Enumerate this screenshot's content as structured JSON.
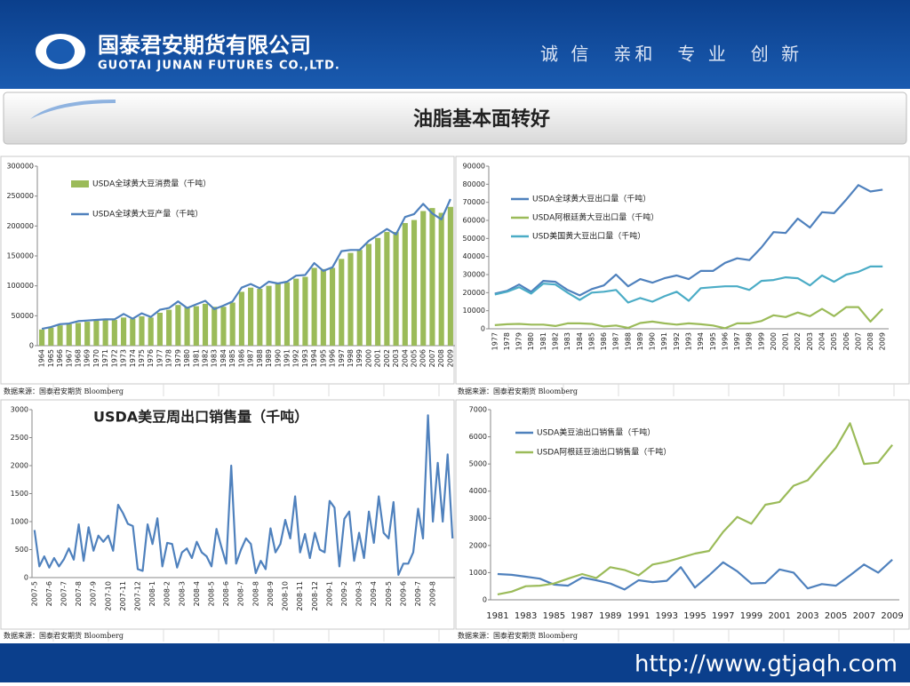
{
  "header": {
    "company": "国泰君安期货有限公司",
    "company_en": "GUOTAI JUNAN FUTURES CO.,LTD.",
    "slogan": "诚 信　亲和　专 业　创 新"
  },
  "title": "油脂基本面转好",
  "sources": [
    "数据来源：国泰君安期货 Bloomberg",
    "数据来源：国泰君安期货 Bloomberg",
    "数据来源：国泰君安期货 Bloomberg",
    "数据来源：国泰君安期货 Bloomberg"
  ],
  "footer": "http://www.gtjaqh.com",
  "chart_data": [
    {
      "type": "bar",
      "legend": "upper left",
      "categories": [
        "1964",
        "1965",
        "1966",
        "1967",
        "1968",
        "1969",
        "1970",
        "1971",
        "1972",
        "1973",
        "1974",
        "1975",
        "1976",
        "1977",
        "1978",
        "1979",
        "1980",
        "1981",
        "1982",
        "1983",
        "1984",
        "1985",
        "1986",
        "1987",
        "1988",
        "1989",
        "1990",
        "1991",
        "1992",
        "1993",
        "1994",
        "1995",
        "1996",
        "1997",
        "1998",
        "1999",
        "2000",
        "2001",
        "2002",
        "2003",
        "2004",
        "2005",
        "2006",
        "2007",
        "2008",
        "2009"
      ],
      "series": [
        {
          "name": "USDA全球黄大豆消费量（千吨）",
          "type": "bar",
          "color": "#9bbb59",
          "values": [
            27000,
            30000,
            34000,
            36000,
            38000,
            40000,
            42000,
            43000,
            43000,
            47000,
            45000,
            49000,
            47000,
            55000,
            60000,
            68000,
            65000,
            66000,
            70000,
            65000,
            65000,
            72000,
            90000,
            97000,
            95000,
            100000,
            104000,
            106000,
            112000,
            115000,
            130000,
            128000,
            130000,
            145000,
            155000,
            160000,
            170000,
            180000,
            190000,
            190000,
            205000,
            210000,
            225000,
            230000,
            222000,
            232000
          ]
        },
        {
          "name": "USDA全球黄大豆产量（千吨）",
          "type": "line",
          "color": "#4f81bd",
          "values": [
            28000,
            31000,
            36000,
            37000,
            41000,
            42000,
            43000,
            44000,
            44000,
            53000,
            45000,
            54000,
            48000,
            60000,
            63000,
            74000,
            63000,
            69000,
            75000,
            61000,
            67000,
            74000,
            97000,
            103000,
            96000,
            107000,
            104000,
            107000,
            117000,
            118000,
            138000,
            125000,
            131000,
            158000,
            160000,
            160000,
            175000,
            185000,
            195000,
            186000,
            215000,
            220000,
            237000,
            221000,
            211000,
            245000
          ]
        }
      ],
      "ylim": [
        0,
        300000
      ],
      "yticks": [
        0,
        50000,
        100000,
        150000,
        200000,
        250000,
        300000
      ]
    },
    {
      "type": "line",
      "legend": "upper left",
      "categories": [
        "1977",
        "1978",
        "1979",
        "1980",
        "1981",
        "1982",
        "1983",
        "1984",
        "1985",
        "1986",
        "1987",
        "1988",
        "1989",
        "1990",
        "1991",
        "1992",
        "1993",
        "1994",
        "1995",
        "1996",
        "1997",
        "1998",
        "1999",
        "2000",
        "2001",
        "2002",
        "2003",
        "2004",
        "2005",
        "2006",
        "2007",
        "2008",
        "2009"
      ],
      "series": [
        {
          "name": "USDA全球黄大豆出口量（千吨）",
          "color": "#4f81bd",
          "values": [
            19500,
            21000,
            24500,
            20500,
            26500,
            26000,
            21500,
            18500,
            22000,
            24000,
            30000,
            23500,
            27500,
            25500,
            28000,
            29500,
            27500,
            32000,
            32000,
            36500,
            39000,
            38000,
            45000,
            53500,
            53000,
            61000,
            56000,
            64500,
            64000,
            71500,
            79500,
            76000,
            77000
          ]
        },
        {
          "name": "USDA阿根廷黄大豆出口量（千吨）",
          "color": "#9bbb59",
          "values": [
            2000,
            2500,
            2700,
            2300,
            2300,
            1500,
            3000,
            3000,
            2700,
            1300,
            1800,
            500,
            3200,
            4000,
            3000,
            2300,
            3000,
            2500,
            1800,
            300,
            3000,
            3000,
            4300,
            7500,
            6500,
            9000,
            7000,
            11000,
            7000,
            12000,
            12000,
            4000,
            11000
          ]
        },
        {
          "name": "USD美国黄大豆出口量（千吨）",
          "color": "#4bacc6",
          "values": [
            19000,
            20500,
            23000,
            19500,
            25000,
            24500,
            20000,
            16000,
            20000,
            20500,
            21500,
            14500,
            17000,
            15000,
            18000,
            20500,
            15500,
            22500,
            23000,
            23500,
            23500,
            21500,
            26500,
            27000,
            28500,
            28000,
            24000,
            29500,
            26000,
            30000,
            31500,
            34500,
            34500
          ]
        }
      ],
      "ylim": [
        0,
        90000
      ],
      "yticks": [
        0,
        10000,
        20000,
        30000,
        40000,
        50000,
        60000,
        70000,
        80000,
        90000
      ]
    },
    {
      "type": "line",
      "title": "USDA美豆周出口销售量（千吨）",
      "categories": [
        "2007-5",
        null,
        null,
        "2007-6",
        null,
        null,
        "2007-7",
        null,
        null,
        "2007-8",
        null,
        null,
        "2007-9",
        null,
        null,
        "2007-10",
        null,
        null,
        "2007-11",
        null,
        null,
        "2007-12",
        null,
        null,
        "2008-1",
        null,
        null,
        "2008-2",
        null,
        null,
        "2008-3",
        null,
        null,
        "2008-4",
        null,
        null,
        "2008-5",
        null,
        null,
        "2008-6",
        null,
        null,
        "2008-7",
        null,
        null,
        "2008-8",
        null,
        null,
        "2008-9",
        null,
        null,
        "2008-10",
        null,
        null,
        "2008-11",
        null,
        null,
        "2008-12",
        null,
        null,
        "2009-1",
        null,
        null,
        "2009-2",
        null,
        null,
        "2009-3",
        null,
        null,
        "2009-4",
        null,
        null,
        "2009-5",
        null,
        null,
        "2009-6",
        null,
        null,
        "2009-7",
        null,
        null,
        "2009-8",
        null,
        null,
        null,
        null
      ],
      "series": [
        {
          "color": "#4f81bd",
          "values": [
            850,
            200,
            380,
            180,
            350,
            200,
            330,
            520,
            320,
            950,
            300,
            900,
            480,
            750,
            640,
            750,
            480,
            1300,
            1150,
            960,
            920,
            150,
            120,
            950,
            600,
            1060,
            200,
            620,
            600,
            180,
            450,
            520,
            350,
            640,
            450,
            380,
            200,
            870,
            550,
            250,
            2000,
            250,
            500,
            700,
            600,
            80,
            300,
            150,
            880,
            450,
            600,
            1030,
            700,
            1450,
            450,
            780,
            350,
            800,
            500,
            450,
            1370,
            1250,
            200,
            1050,
            1180,
            300,
            800,
            350,
            1180,
            620,
            1450,
            800,
            700,
            1350,
            50,
            250,
            250,
            450,
            1230,
            700,
            2900,
            1000,
            2050,
            1000,
            2200,
            700
          ]
        }
      ],
      "ylim": [
        0,
        3000
      ],
      "yticks": [
        0,
        500,
        1000,
        1500,
        2000,
        2500,
        3000
      ]
    },
    {
      "type": "line",
      "legend": "upper left",
      "categories": [
        "1981",
        null,
        "1983",
        null,
        "1985",
        null,
        "1987",
        null,
        "1989",
        null,
        "1991",
        null,
        "1993",
        null,
        "1995",
        null,
        "1997",
        null,
        "1999",
        null,
        "2001",
        null,
        "2003",
        null,
        "2005",
        null,
        "2007",
        null,
        "2009"
      ],
      "series": [
        {
          "name": "USDA美豆油出口销售量（千吨）",
          "color": "#4f81bd",
          "values": [
            950,
            920,
            850,
            780,
            560,
            520,
            820,
            720,
            600,
            380,
            720,
            650,
            700,
            1200,
            450,
            900,
            1380,
            1050,
            600,
            620,
            1120,
            1000,
            420,
            580,
            520,
            900,
            1300,
            1000,
            1480
          ]
        },
        {
          "name": "USDA阿根廷豆油出口销售量（千吨）",
          "color": "#9bbb59",
          "values": [
            200,
            300,
            500,
            520,
            600,
            780,
            950,
            800,
            1200,
            1100,
            900,
            1300,
            1400,
            1550,
            1700,
            1800,
            2500,
            3050,
            2800,
            3500,
            3600,
            4200,
            4400,
            5000,
            5600,
            6500,
            5000,
            5050,
            5700
          ]
        }
      ],
      "ylim": [
        0,
        7000
      ],
      "yticks": [
        0,
        1000,
        2000,
        3000,
        4000,
        5000,
        6000,
        7000
      ]
    }
  ]
}
